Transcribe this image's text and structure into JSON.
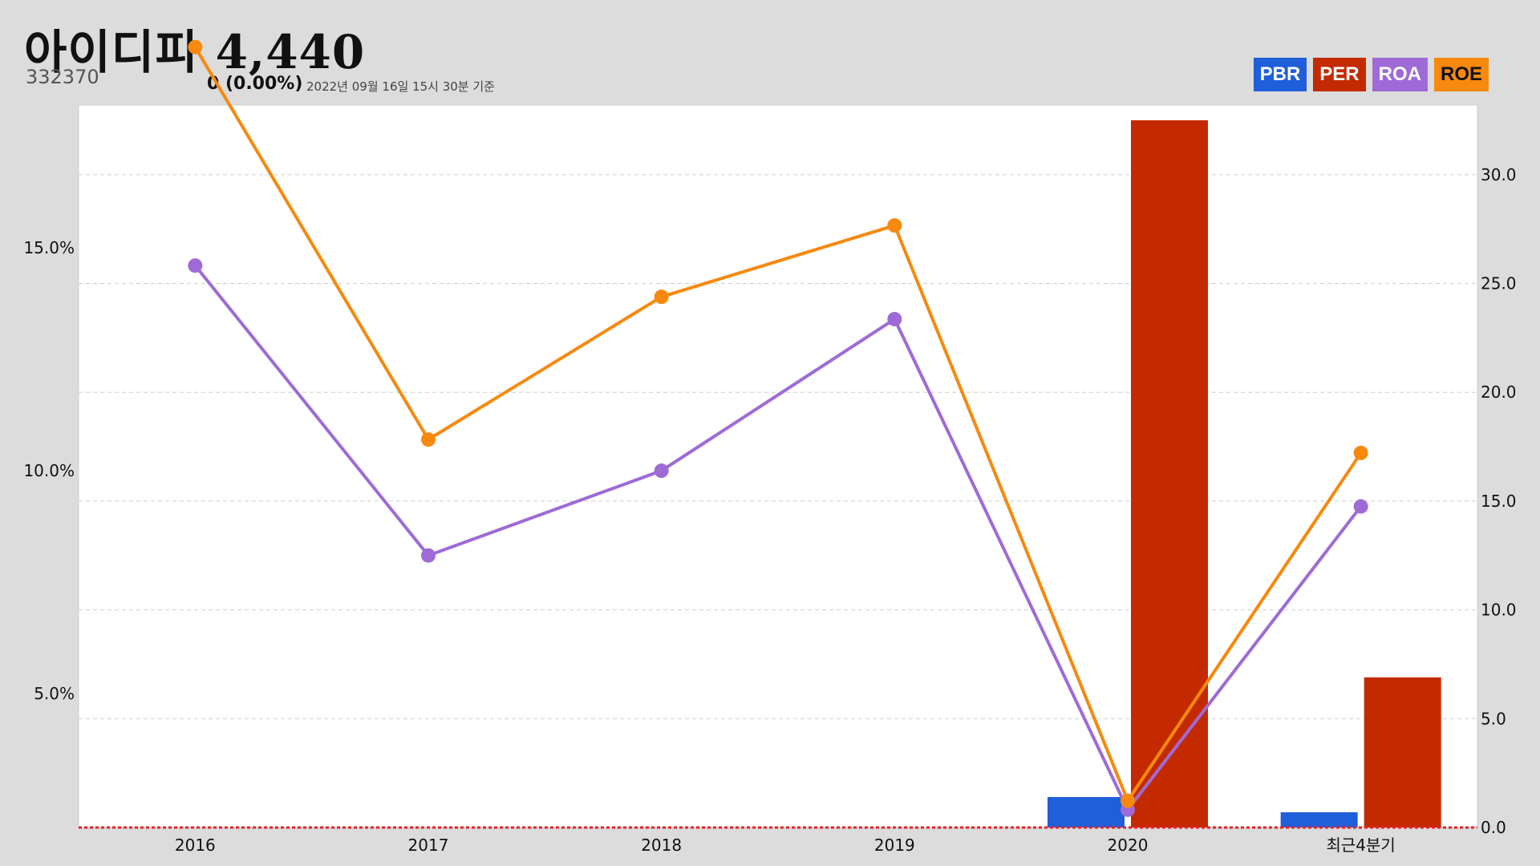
{
  "header": {
    "stock_name": "아이디피",
    "price": "4,440",
    "code": "332370",
    "change": "0 (0.00%)",
    "as_of": "2022년 09월 16일 15시 30분 기준"
  },
  "legend": [
    {
      "label": "PBR",
      "bg": "#1f5fd9",
      "fg": "#ffffff"
    },
    {
      "label": "PER",
      "bg": "#c42a00",
      "fg": "#ffffff"
    },
    {
      "label": "ROA",
      "bg": "#9e6bd6",
      "fg": "#ffffff"
    },
    {
      "label": "ROE",
      "bg": "#f7890e",
      "fg": "#111111"
    }
  ],
  "chart_data": {
    "type": "bar",
    "categories": [
      "2016",
      "2017",
      "2018",
      "2019",
      "2020",
      "최근4분기"
    ],
    "left_axis": {
      "ticks": [
        {
          "value": 5,
          "label": "5.0%"
        },
        {
          "value": 10,
          "label": "10.0%"
        },
        {
          "value": 15,
          "label": "15.0%"
        }
      ],
      "range": [
        2.0,
        18.2
      ]
    },
    "right_axis": {
      "ticks": [
        {
          "value": 0,
          "label": "0.0"
        },
        {
          "value": 5,
          "label": "5.0"
        },
        {
          "value": 10,
          "label": "10.0"
        },
        {
          "value": 15,
          "label": "15.0"
        },
        {
          "value": 20,
          "label": "20.0"
        },
        {
          "value": 25,
          "label": "25.0"
        },
        {
          "value": 30,
          "label": "30.0"
        }
      ],
      "range": [
        0,
        33.2
      ]
    },
    "grid": true,
    "legend_position": "top-right",
    "bar_series": [
      {
        "name": "PBR",
        "color": "#1f5fd9",
        "values": [
          null,
          null,
          null,
          null,
          1.4,
          0.7
        ]
      },
      {
        "name": "PER",
        "color": "#c42a00",
        "values": [
          null,
          null,
          null,
          null,
          32.5,
          6.9
        ]
      }
    ],
    "line_series": [
      {
        "name": "ROA",
        "color": "#9e6bd6",
        "values": [
          14.6,
          8.1,
          10.0,
          13.4,
          2.4,
          9.2
        ]
      },
      {
        "name": "ROE",
        "color": "#f7890e",
        "values": [
          19.5,
          10.7,
          13.9,
          15.5,
          2.6,
          10.4
        ]
      }
    ],
    "baseline_color": "#e8212a"
  }
}
